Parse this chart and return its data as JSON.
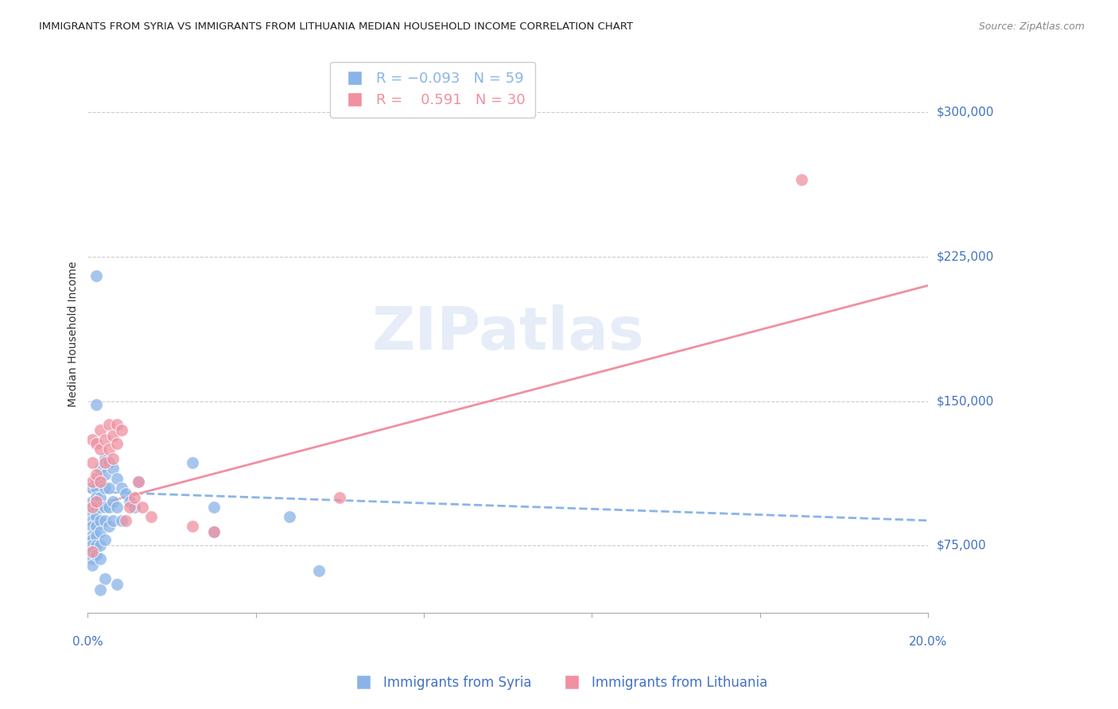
{
  "title": "IMMIGRANTS FROM SYRIA VS IMMIGRANTS FROM LITHUANIA MEDIAN HOUSEHOLD INCOME CORRELATION CHART",
  "source": "Source: ZipAtlas.com",
  "ylabel": "Median Household Income",
  "ytick_labels": [
    "$75,000",
    "$150,000",
    "$225,000",
    "$300,000"
  ],
  "ytick_values": [
    75000,
    150000,
    225000,
    300000
  ],
  "ylim": [
    40000,
    330000
  ],
  "xlim": [
    0.0,
    0.2
  ],
  "watermark": "ZIPatlas",
  "syria_color": "#8ab4e8",
  "lithuania_color": "#f090a0",
  "syria_scatter": [
    [
      0.001,
      105000
    ],
    [
      0.001,
      98000
    ],
    [
      0.001,
      92000
    ],
    [
      0.001,
      88000
    ],
    [
      0.001,
      85000
    ],
    [
      0.001,
      80000
    ],
    [
      0.001,
      78000
    ],
    [
      0.001,
      75000
    ],
    [
      0.001,
      72000
    ],
    [
      0.001,
      68000
    ],
    [
      0.001,
      65000
    ],
    [
      0.002,
      110000
    ],
    [
      0.002,
      105000
    ],
    [
      0.002,
      100000
    ],
    [
      0.002,
      95000
    ],
    [
      0.002,
      90000
    ],
    [
      0.002,
      85000
    ],
    [
      0.002,
      80000
    ],
    [
      0.002,
      75000
    ],
    [
      0.002,
      70000
    ],
    [
      0.003,
      115000
    ],
    [
      0.003,
      108000
    ],
    [
      0.003,
      100000
    ],
    [
      0.003,
      95000
    ],
    [
      0.003,
      88000
    ],
    [
      0.003,
      82000
    ],
    [
      0.003,
      75000
    ],
    [
      0.003,
      68000
    ],
    [
      0.004,
      120000
    ],
    [
      0.004,
      112000
    ],
    [
      0.004,
      105000
    ],
    [
      0.004,
      95000
    ],
    [
      0.004,
      88000
    ],
    [
      0.004,
      78000
    ],
    [
      0.005,
      118000
    ],
    [
      0.005,
      105000
    ],
    [
      0.005,
      95000
    ],
    [
      0.005,
      85000
    ],
    [
      0.006,
      115000
    ],
    [
      0.006,
      98000
    ],
    [
      0.006,
      88000
    ],
    [
      0.007,
      110000
    ],
    [
      0.007,
      95000
    ],
    [
      0.008,
      105000
    ],
    [
      0.008,
      88000
    ],
    [
      0.009,
      102000
    ],
    [
      0.01,
      98000
    ],
    [
      0.011,
      95000
    ],
    [
      0.002,
      215000
    ],
    [
      0.002,
      148000
    ],
    [
      0.012,
      108000
    ],
    [
      0.025,
      118000
    ],
    [
      0.03,
      95000
    ],
    [
      0.03,
      82000
    ],
    [
      0.048,
      90000
    ],
    [
      0.055,
      62000
    ],
    [
      0.004,
      58000
    ],
    [
      0.007,
      55000
    ],
    [
      0.003,
      52000
    ]
  ],
  "lithuania_scatter": [
    [
      0.001,
      130000
    ],
    [
      0.001,
      118000
    ],
    [
      0.001,
      108000
    ],
    [
      0.001,
      95000
    ],
    [
      0.001,
      72000
    ],
    [
      0.002,
      128000
    ],
    [
      0.002,
      112000
    ],
    [
      0.002,
      98000
    ],
    [
      0.003,
      135000
    ],
    [
      0.003,
      125000
    ],
    [
      0.003,
      108000
    ],
    [
      0.004,
      130000
    ],
    [
      0.004,
      118000
    ],
    [
      0.005,
      138000
    ],
    [
      0.005,
      125000
    ],
    [
      0.006,
      132000
    ],
    [
      0.006,
      120000
    ],
    [
      0.007,
      138000
    ],
    [
      0.007,
      128000
    ],
    [
      0.008,
      135000
    ],
    [
      0.009,
      88000
    ],
    [
      0.01,
      95000
    ],
    [
      0.011,
      100000
    ],
    [
      0.012,
      108000
    ],
    [
      0.013,
      95000
    ],
    [
      0.015,
      90000
    ],
    [
      0.025,
      85000
    ],
    [
      0.03,
      82000
    ],
    [
      0.17,
      265000
    ],
    [
      0.06,
      100000
    ]
  ],
  "syria_trend_x": [
    0.0,
    0.2
  ],
  "syria_trend_y": [
    103000,
    88000
  ],
  "lithuania_trend_x": [
    0.0,
    0.2
  ],
  "lithuania_trend_y": [
    95000,
    210000
  ],
  "background_color": "#ffffff",
  "grid_color": "#cccccc",
  "axis_color": "#4472c4",
  "title_color": "#222222",
  "ytick_color": "#4472c4",
  "xtick_color": "#4472c4"
}
